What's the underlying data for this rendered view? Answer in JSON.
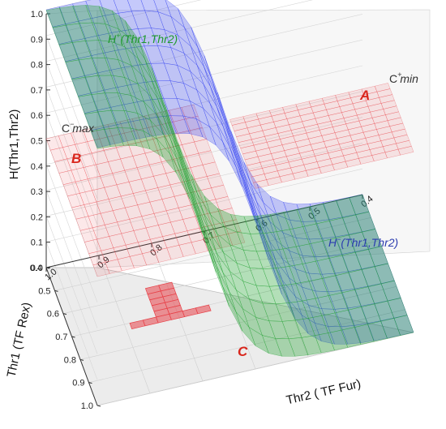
{
  "chart_data": {
    "type": "surface3d",
    "zlabel": "H(Thr1,Thr2)",
    "ylabel": "Thr1 (TF Rex)",
    "xlabel": "Thr2 ( TF Fur)",
    "z_ticks": [
      "0.0",
      "0.1",
      "0.2",
      "0.3",
      "0.4",
      "0.5",
      "0.6",
      "0.7",
      "0.8",
      "0.9",
      "1.0"
    ],
    "thr1_ticks": [
      "1.0",
      "0.9",
      "0.8",
      "0.7",
      "0.6",
      "0.5",
      "0.4"
    ],
    "thr2_ticks": [
      "1.0",
      "0.9",
      "0.8",
      "0.7",
      "0.6",
      "0.5",
      "0.4"
    ],
    "xlim": [
      0.4,
      1.0
    ],
    "ylim": [
      0.4,
      1.0
    ],
    "zlim": [
      0.0,
      1.0
    ],
    "surfaces": [
      {
        "name": "H+(Thr1,Thr2)",
        "label_main": "H",
        "label_sup": "+",
        "label_rest": "(Thr1,Thr2)",
        "color": "#1fa12f",
        "transition_thr2": 0.78
      },
      {
        "name": "H−(Thr1,Thr2)",
        "label_main": "H",
        "label_sup": "−",
        "label_rest": "(Thr1,Thr2)",
        "color": "#2f3ef0",
        "transition_thr2": 0.68
      }
    ],
    "planes": [
      {
        "label_main": "C",
        "label_sup": "+",
        "label_sub": "min",
        "region": "A",
        "z": 0.7,
        "color": "#e8434a"
      },
      {
        "label_main": "C",
        "label_sup": "−",
        "label_sub": "max",
        "region": "B",
        "z": 0.5,
        "color": "#e8434a"
      }
    ],
    "region_C": {
      "region": "C",
      "color": "#e8434a"
    },
    "grid": true
  }
}
